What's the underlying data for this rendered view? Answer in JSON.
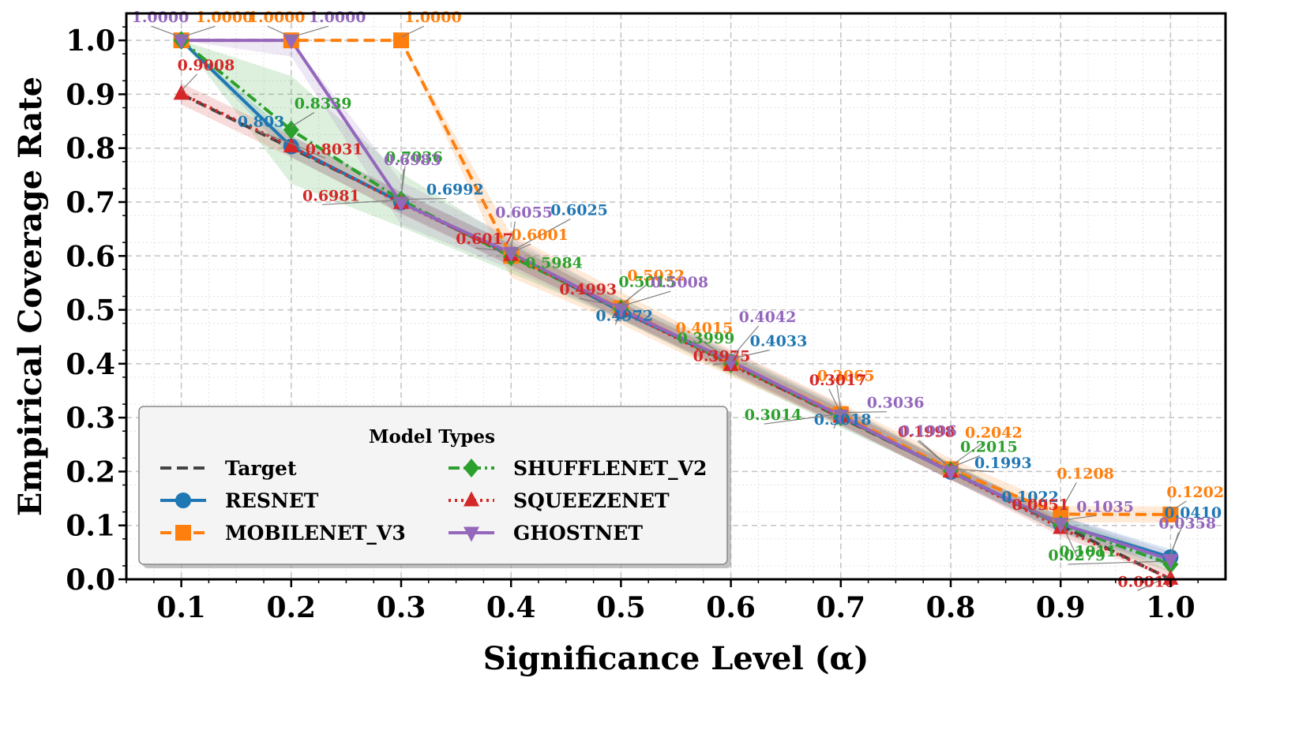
{
  "chart_data": {
    "type": "line",
    "title": "",
    "xlabel": "Significance Level (α)",
    "ylabel": "Empirical Coverage Rate",
    "x": [
      0.1,
      0.2,
      0.3,
      0.4,
      0.5,
      0.6,
      0.7,
      0.8,
      0.9,
      1.0
    ],
    "xticks": [
      "0.1",
      "0.2",
      "0.3",
      "0.4",
      "0.5",
      "0.6",
      "0.7",
      "0.8",
      "0.9",
      "1.0"
    ],
    "yticks": [
      "0.0",
      "0.1",
      "0.2",
      "0.3",
      "0.4",
      "0.5",
      "0.6",
      "0.7",
      "0.8",
      "0.9",
      "1.0"
    ],
    "xlim": [
      0.05,
      1.05
    ],
    "ylim": [
      0.0,
      1.05
    ],
    "grid": true,
    "legend": {
      "title": "Model Types",
      "position": "lower-left"
    },
    "target": {
      "name": "Target",
      "color": "#444444",
      "values": [
        0.9,
        0.8,
        0.7,
        0.6,
        0.5,
        0.4,
        0.3,
        0.2,
        0.1,
        0.0
      ]
    },
    "series": [
      {
        "name": "RESNET",
        "color": "#1f77b4",
        "marker": "circle",
        "dash": "solid",
        "values": [
          1.0,
          0.803,
          0.6992,
          0.6025,
          0.4972,
          0.4033,
          0.3018,
          0.1993,
          0.1022,
          0.041
        ],
        "labels": [
          "",
          "0.803",
          "0.6992",
          "0.6025",
          "0.4972",
          "0.4033",
          "0.3018",
          "0.1993",
          "0.1022",
          "0.0410"
        ]
      },
      {
        "name": "MOBILENET_V3",
        "color": "#ff7f0e",
        "marker": "square",
        "dash": "dashed",
        "values": [
          1.0,
          1.0,
          1.0,
          0.6001,
          0.5032,
          0.4015,
          0.3065,
          0.2042,
          0.1208,
          0.1202
        ],
        "labels": [
          "1.0000",
          "1.0000",
          "1.0000",
          "0.6001",
          "0.5032",
          "0.4015",
          "0.3065",
          "0.2042",
          "0.1208",
          "0.1202"
        ]
      },
      {
        "name": "SHUFFLENET_V2",
        "color": "#2ca02c",
        "marker": "diamond",
        "dash": "dashdot",
        "values": [
          1.0,
          0.8339,
          0.7036,
          0.5984,
          0.5015,
          0.3999,
          0.3014,
          0.2015,
          0.1011,
          0.0279
        ],
        "labels": [
          "",
          "0.8339",
          "0.7036",
          "0.5984",
          "0.5015",
          "0.3999",
          "0.3014",
          "0.2015",
          "0.1011",
          "0.0279"
        ]
      },
      {
        "name": "SQUEEZENET",
        "color": "#d62728",
        "marker": "triangle-up",
        "dash": "dotted",
        "values": [
          0.9008,
          0.8031,
          0.6981,
          0.6017,
          0.4993,
          0.3975,
          0.3017,
          0.1998,
          0.0951,
          0.001
        ],
        "labels": [
          "0.9008",
          "0.8031",
          "0.6981",
          "0.6017",
          "0.4993",
          "0.3975",
          "0.3017",
          "0.1998",
          "0.0951",
          "0.0010"
        ]
      },
      {
        "name": "GHOSTNET",
        "color": "#9467bd",
        "marker": "triangle-down",
        "dash": "solid",
        "values": [
          1.0,
          1.0,
          0.6983,
          0.6055,
          0.5008,
          0.4042,
          0.3036,
          0.1996,
          0.1035,
          0.0358
        ],
        "labels": [
          "1.0000",
          "1.0000",
          "0.6983",
          "0.6055",
          "0.5008",
          "0.4042",
          "0.3036",
          "0.1996",
          "0.1035",
          "0.0358"
        ]
      }
    ]
  }
}
